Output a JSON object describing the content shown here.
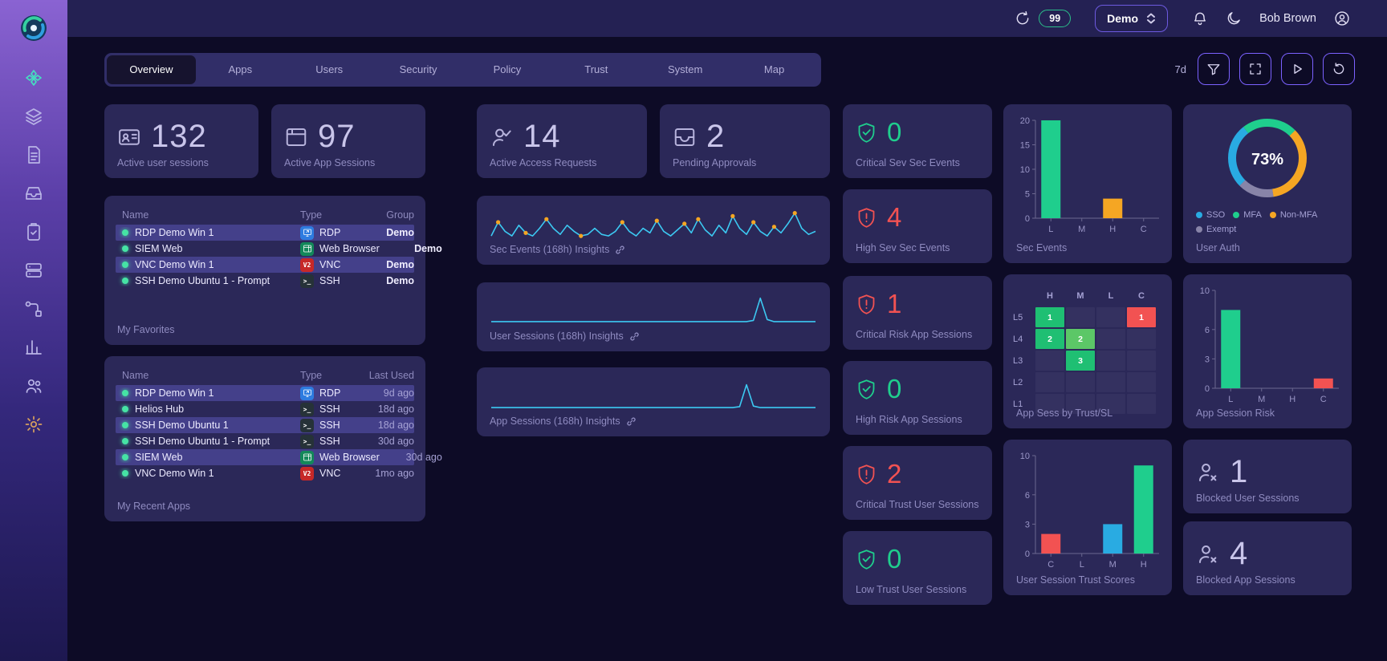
{
  "topbar": {
    "refresh_badge": "99",
    "org_selector": "Demo",
    "user_name": "Bob Brown"
  },
  "sidebar": {
    "items": [
      "dashboard",
      "layers",
      "documents",
      "inbox",
      "tasks",
      "servers",
      "workflow",
      "analytics",
      "users",
      "settings"
    ]
  },
  "tabs": [
    {
      "label": "Overview",
      "active": true
    },
    {
      "label": "Apps"
    },
    {
      "label": "Users"
    },
    {
      "label": "Security"
    },
    {
      "label": "Policy"
    },
    {
      "label": "Trust"
    },
    {
      "label": "System"
    },
    {
      "label": "Map"
    }
  ],
  "controls": {
    "time_range": "7d",
    "buttons": [
      "filter",
      "fullscreen",
      "play",
      "refresh"
    ]
  },
  "stat_cards": [
    {
      "value": "132",
      "label": "Active user sessions",
      "icon": "id-card-icon"
    },
    {
      "value": "97",
      "label": "Active App Sessions",
      "icon": "app-window-icon"
    },
    {
      "value": "14",
      "label": "Active Access Requests",
      "icon": "user-check-icon"
    },
    {
      "value": "2",
      "label": "Pending Approvals",
      "icon": "inbox-icon"
    }
  ],
  "status_cards": [
    {
      "value": "0",
      "label": "Critical Sev Sec Events",
      "state": "ok"
    },
    {
      "value": "4",
      "label": "High Sev Sec Events",
      "state": "alert"
    },
    {
      "value": "1",
      "label": "Critical Risk App Sessions",
      "state": "alert"
    },
    {
      "value": "0",
      "label": "High Risk App Sessions",
      "state": "ok"
    },
    {
      "value": "2",
      "label": "Critical Trust User Sessions",
      "state": "alert"
    },
    {
      "value": "0",
      "label": "Low Trust User Sessions",
      "state": "ok"
    }
  ],
  "blocked_cards": [
    {
      "value": "1",
      "label": "Blocked User Sessions"
    },
    {
      "value": "4",
      "label": "Blocked App Sessions"
    }
  ],
  "icons": {
    "vnc_glyph": "V2",
    "ssh_glyph": ">_"
  },
  "tables": {
    "favorites": {
      "label": "My Favorites",
      "columns": [
        "Name",
        "Type",
        "Group"
      ],
      "rows": [
        {
          "name": "RDP Demo Win 1",
          "type": "RDP",
          "group": "Demo"
        },
        {
          "name": "SIEM Web",
          "type": "Web Browser",
          "group": "Demo"
        },
        {
          "name": "VNC Demo Win 1",
          "type": "VNC",
          "group": "Demo"
        },
        {
          "name": "SSH Demo Ubuntu 1 - Prompt",
          "type": "SSH",
          "group": "Demo"
        }
      ]
    },
    "recent": {
      "label": "My Recent Apps",
      "columns": [
        "Name",
        "Type",
        "Last Used"
      ],
      "rows": [
        {
          "name": "RDP Demo Win 1",
          "type": "RDP",
          "last_used": "9d ago"
        },
        {
          "name": "Helios Hub",
          "type": "SSH",
          "last_used": "18d ago"
        },
        {
          "name": "SSH Demo Ubuntu 1",
          "type": "SSH",
          "last_used": "18d ago"
        },
        {
          "name": "SSH Demo Ubuntu 1 - Prompt",
          "type": "SSH",
          "last_used": "30d ago"
        },
        {
          "name": "SIEM Web",
          "type": "Web Browser",
          "last_used": "30d ago"
        },
        {
          "name": "VNC Demo Win 1",
          "type": "VNC",
          "last_used": "1mo ago"
        }
      ]
    }
  },
  "chart_data": [
    {
      "type": "line",
      "title": "Sec Events (168h) Insights",
      "x_span_hours": 168,
      "ylim": [
        0,
        10
      ],
      "color": "#3cc9f2",
      "dot_color": "#f5a623",
      "values": [
        0.5,
        5,
        2,
        0.5,
        4,
        1.5,
        0.5,
        3,
        6,
        3,
        1,
        4,
        2,
        0.5,
        1,
        3,
        1,
        0.5,
        2,
        5,
        2,
        0.5,
        3,
        1.5,
        5.5,
        2,
        0.5,
        2.5,
        4.5,
        1.5,
        6,
        2.5,
        0.5,
        4,
        1.5,
        7,
        3,
        1,
        5,
        2,
        0.5,
        3.5,
        1.5,
        4.5,
        8,
        3,
        1,
        2
      ],
      "dots": [
        1,
        5,
        8,
        13,
        19,
        24,
        28,
        30,
        35,
        38,
        41,
        44
      ]
    },
    {
      "type": "line",
      "title": "User Sessions (168h) Insights",
      "x_span_hours": 168,
      "ylim": [
        0,
        10
      ],
      "color": "#3cc9f2",
      "dots": [],
      "values": [
        0.8,
        0.8,
        0.8,
        0.8,
        0.8,
        0.8,
        0.8,
        0.8,
        0.8,
        0.8,
        0.8,
        0.8,
        0.8,
        0.8,
        0.8,
        0.8,
        0.8,
        0.8,
        0.8,
        0.8,
        0.8,
        0.8,
        0.8,
        0.8,
        0.8,
        0.8,
        0.8,
        0.8,
        0.8,
        0.8,
        0.8,
        0.8,
        0.8,
        0.8,
        0.8,
        0.8,
        0.8,
        0.8,
        1.2,
        8.5,
        1.5,
        0.8,
        0.8,
        0.8,
        0.8,
        0.8,
        0.8,
        0.8
      ]
    },
    {
      "type": "line",
      "title": "App Sessions (168h) Insights",
      "x_span_hours": 168,
      "ylim": [
        0,
        10
      ],
      "color": "#3cc9f2",
      "dots": [],
      "values": [
        0.5,
        0.5,
        0.5,
        0.5,
        0.5,
        0.5,
        0.5,
        0.5,
        0.5,
        0.5,
        0.5,
        0.5,
        0.5,
        0.5,
        0.5,
        0.5,
        0.5,
        0.5,
        0.5,
        0.5,
        0.5,
        0.5,
        0.5,
        0.5,
        0.5,
        0.5,
        0.5,
        0.5,
        0.5,
        0.5,
        0.5,
        0.5,
        0.5,
        0.5,
        0.5,
        0.5,
        0.8,
        8,
        1,
        0.5,
        0.5,
        0.5,
        0.5,
        0.5,
        0.5,
        0.5,
        0.5,
        0.5
      ]
    },
    {
      "type": "bar",
      "title": "Sec Events",
      "categories": [
        "L",
        "M",
        "H",
        "C"
      ],
      "values": [
        20,
        0,
        4,
        0
      ],
      "colors": [
        "#1fce8d",
        "",
        "#f5a623",
        ""
      ],
      "ylim": [
        0,
        20
      ],
      "yticks": [
        0,
        5,
        10,
        15,
        20
      ]
    },
    {
      "type": "pie",
      "title": "User Auth",
      "center_label": "73%",
      "start_angle": 135,
      "segments": [
        {
          "label": "SSO",
          "value": 27,
          "color": "#29abe2"
        },
        {
          "label": "MFA",
          "value": 23,
          "color": "#1fce8d"
        },
        {
          "label": "Non-MFA",
          "value": 35,
          "color": "#f5a623"
        },
        {
          "label": "Exempt",
          "value": 15,
          "color": "#8884a8"
        }
      ]
    },
    {
      "type": "heatmap",
      "title": "App Sess by Trust/SL",
      "cols": [
        "H",
        "M",
        "L",
        "C"
      ],
      "rows": [
        "L5",
        "L4",
        "L3",
        "L2",
        "L1"
      ],
      "cells": [
        {
          "row": "L5",
          "col": "H",
          "value": 1,
          "color": "#1fbf73"
        },
        {
          "row": "L5",
          "col": "C",
          "value": 1,
          "color": "#f25252"
        },
        {
          "row": "L4",
          "col": "H",
          "value": 2,
          "color": "#1fbf73"
        },
        {
          "row": "L4",
          "col": "M",
          "value": 2,
          "color": "#5cc767"
        },
        {
          "row": "L3",
          "col": "M",
          "value": 3,
          "color": "#1fbf73"
        }
      ],
      "empty_color": "#343160"
    },
    {
      "type": "bar",
      "title": "App Session Risk",
      "categories": [
        "L",
        "M",
        "H",
        "C"
      ],
      "values": [
        8,
        0,
        0,
        1
      ],
      "colors": [
        "#1fce8d",
        "",
        "",
        "#f25252"
      ],
      "ylim": [
        0,
        10
      ],
      "yticks": [
        0,
        3,
        6,
        10
      ]
    },
    {
      "type": "bar",
      "title": "User Session Trust Scores",
      "categories": [
        "C",
        "L",
        "M",
        "H"
      ],
      "values": [
        2,
        0,
        3,
        9
      ],
      "colors": [
        "#f25252",
        "",
        "#29abe2",
        "#1fce8d"
      ],
      "ylim": [
        0,
        10
      ],
      "yticks": [
        0,
        3,
        6,
        10
      ]
    }
  ]
}
